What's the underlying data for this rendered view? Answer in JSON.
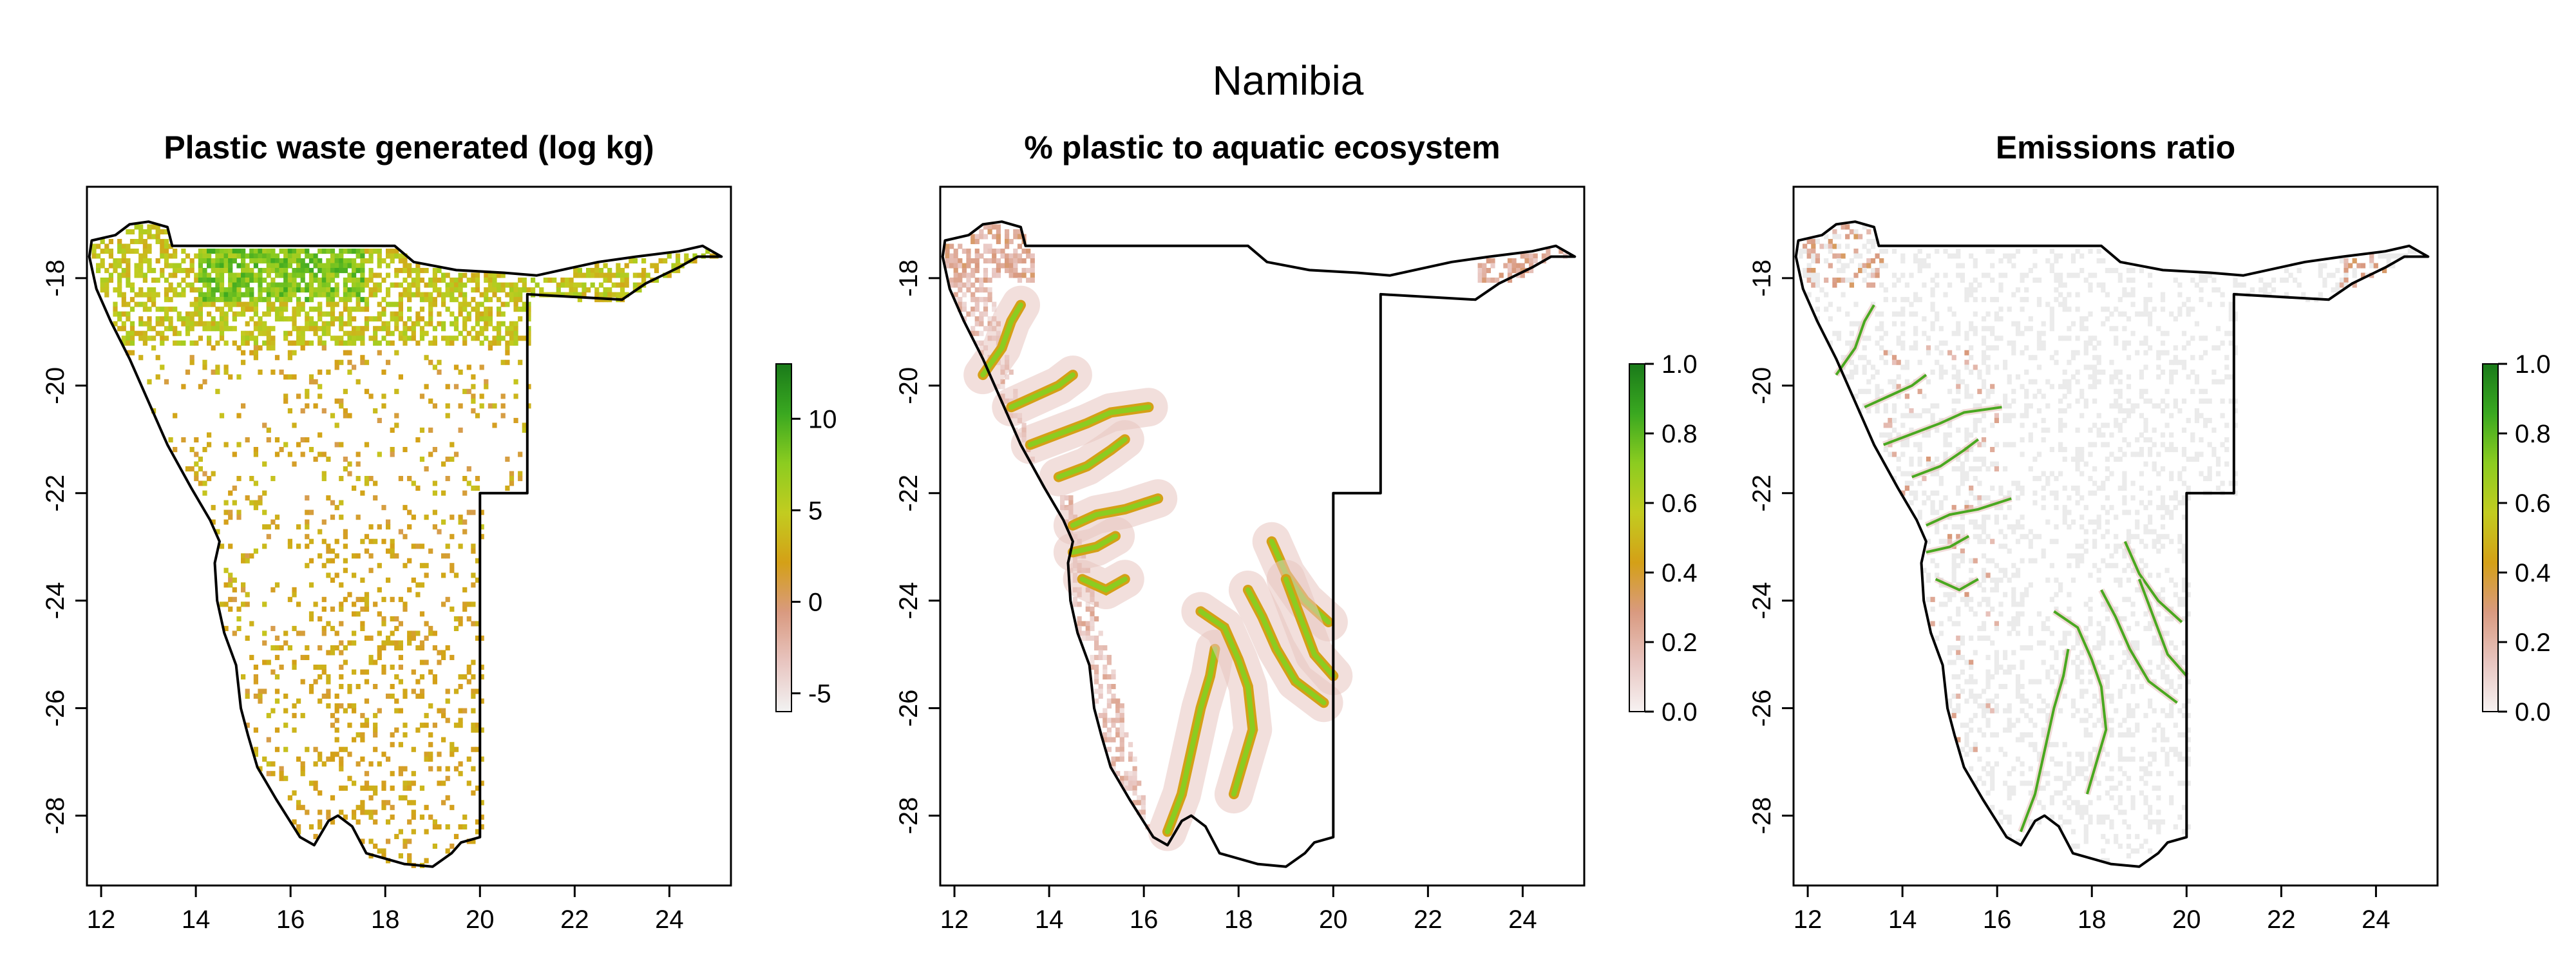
{
  "figure": {
    "title": "Namibia"
  },
  "panels": [
    {
      "title": "Plastic waste generated (log kg)",
      "legend_ticks": [
        "10",
        "5",
        "0",
        "-5"
      ],
      "legend_range": [
        -6,
        13
      ],
      "legend_values": [
        10,
        5,
        0,
        -5
      ],
      "color_scale": [
        "#f2f2f2",
        "#e8c5c0",
        "#d99a80",
        "#d4a017",
        "#c2cc20",
        "#8ccc20",
        "#3aa820",
        "#1a7a1a"
      ]
    },
    {
      "title": "% plastic to aquatic ecosystem",
      "legend_ticks": [
        "1.0",
        "0.8",
        "0.6",
        "0.4",
        "0.2",
        "0.0"
      ],
      "legend_range": [
        0,
        1
      ],
      "legend_values": [
        1.0,
        0.8,
        0.6,
        0.4,
        0.2,
        0.0
      ],
      "color_scale": [
        "#f7f2f2",
        "#e8c5c0",
        "#d99a80",
        "#d4a017",
        "#c2cc20",
        "#8ccc20",
        "#3aa820",
        "#1a7a1a"
      ]
    },
    {
      "title": "Emissions ratio",
      "legend_ticks": [
        "1.0",
        "0.8",
        "0.6",
        "0.4",
        "0.2",
        "0.0"
      ],
      "legend_range": [
        0,
        1
      ],
      "legend_values": [
        1.0,
        0.8,
        0.6,
        0.4,
        0.2,
        0.0
      ],
      "color_scale": [
        "#f7f2f2",
        "#e8c5c0",
        "#d99a80",
        "#d4a017",
        "#c2cc20",
        "#8ccc20",
        "#3aa820",
        "#1a7a1a"
      ]
    }
  ],
  "axes": {
    "x_ticks": [
      "12",
      "14",
      "16",
      "18",
      "20",
      "22",
      "24"
    ],
    "x_values": [
      12,
      14,
      16,
      18,
      20,
      22,
      24
    ],
    "y_ticks": [
      "-18",
      "-20",
      "-22",
      "-24",
      "-26",
      "-28"
    ],
    "y_values": [
      -18,
      -20,
      -22,
      -24,
      -26,
      -28
    ],
    "x_range": [
      11.7,
      25.3
    ],
    "y_range": [
      -29.3,
      -16.3
    ]
  },
  "colors": {
    "outline": "#000000",
    "low": "#e8c5c0",
    "mid": "#d4a017",
    "high": "#8ccc20",
    "max": "#1a7a1a",
    "background_raster": "#ebebeb"
  }
}
